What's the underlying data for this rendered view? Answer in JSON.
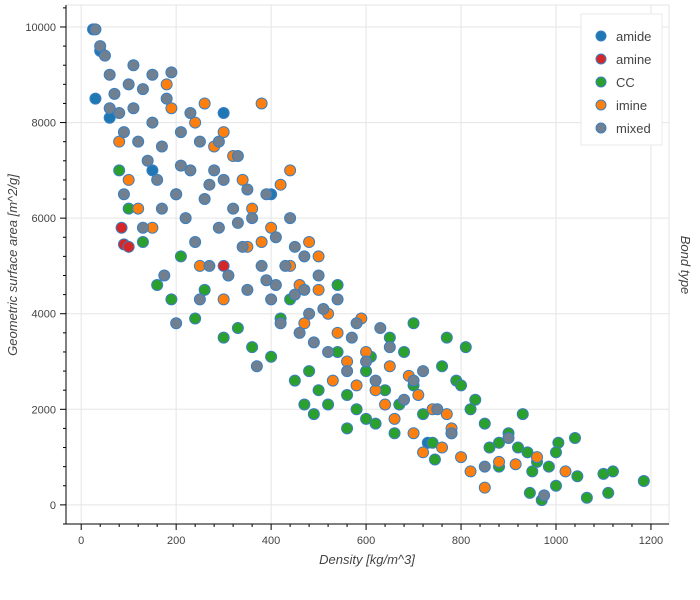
{
  "chart_data": {
    "type": "scatter",
    "title": "",
    "xlabel": "Density [kg/m^3]",
    "ylabel": "Geometric surface area [m^2/g]",
    "legend_title": "Bond type",
    "legend_position": "top-right",
    "grid": true,
    "xlim": [
      -32,
      1238
    ],
    "ylim": [
      -400,
      10460
    ],
    "xticks": [
      0,
      200,
      400,
      600,
      800,
      1000,
      1200
    ],
    "yticks": [
      0,
      2000,
      4000,
      6000,
      8000,
      10000
    ],
    "outline_color": "#3a7fc0",
    "series": [
      {
        "name": "amide",
        "color": "#1f77b4",
        "points": [
          [
            25,
            9950
          ],
          [
            40,
            9500
          ],
          [
            30,
            8500
          ],
          [
            60,
            8100
          ],
          [
            730,
            1300
          ],
          [
            150,
            7000
          ],
          [
            400,
            6500
          ],
          [
            300,
            8200
          ]
        ]
      },
      {
        "name": "amine",
        "color": "#d62728",
        "points": [
          [
            90,
            5450
          ],
          [
            85,
            5800
          ],
          [
            300,
            5000
          ],
          [
            100,
            5400
          ]
        ]
      },
      {
        "name": "CC",
        "color": "#2ca02c",
        "points": [
          [
            80,
            7000
          ],
          [
            100,
            6200
          ],
          [
            130,
            5500
          ],
          [
            160,
            4600
          ],
          [
            190,
            4300
          ],
          [
            210,
            5200
          ],
          [
            240,
            3900
          ],
          [
            260,
            4500
          ],
          [
            300,
            3500
          ],
          [
            330,
            3700
          ],
          [
            360,
            3300
          ],
          [
            400,
            3100
          ],
          [
            420,
            3900
          ],
          [
            450,
            2600
          ],
          [
            480,
            2800
          ],
          [
            500,
            2400
          ],
          [
            520,
            2100
          ],
          [
            540,
            3200
          ],
          [
            560,
            2300
          ],
          [
            580,
            2000
          ],
          [
            600,
            2800
          ],
          [
            620,
            1700
          ],
          [
            640,
            2400
          ],
          [
            660,
            1500
          ],
          [
            680,
            3200
          ],
          [
            700,
            2500
          ],
          [
            720,
            1900
          ],
          [
            740,
            1300
          ],
          [
            760,
            2900
          ],
          [
            780,
            1500
          ],
          [
            790,
            2600
          ],
          [
            810,
            3300
          ],
          [
            830,
            2200
          ],
          [
            850,
            1700
          ],
          [
            860,
            1200
          ],
          [
            880,
            800
          ],
          [
            900,
            1500
          ],
          [
            920,
            1200
          ],
          [
            940,
            1100
          ],
          [
            950,
            700
          ],
          [
            960,
            900
          ],
          [
            970,
            100
          ],
          [
            1000,
            400
          ],
          [
            1005,
            1300
          ],
          [
            1040,
            1400
          ],
          [
            1065,
            150
          ],
          [
            1100,
            650
          ],
          [
            1120,
            700
          ],
          [
            1185,
            500
          ],
          [
            1110,
            250
          ],
          [
            1000,
            1100
          ],
          [
            930,
            1900
          ],
          [
            800,
            2500
          ],
          [
            470,
            2100
          ],
          [
            560,
            1600
          ],
          [
            600,
            1800
          ],
          [
            650,
            3500
          ],
          [
            700,
            3800
          ],
          [
            440,
            4300
          ],
          [
            540,
            4600
          ],
          [
            490,
            1900
          ],
          [
            745,
            950
          ],
          [
            770,
            3500
          ],
          [
            610,
            3100
          ],
          [
            670,
            2100
          ],
          [
            820,
            2000
          ],
          [
            880,
            1300
          ],
          [
            985,
            800
          ],
          [
            1045,
            600
          ],
          [
            945,
            250
          ]
        ]
      },
      {
        "name": "imine",
        "color": "#ff7f0e",
        "points": [
          [
            80,
            7600
          ],
          [
            100,
            6800
          ],
          [
            120,
            6200
          ],
          [
            150,
            5800
          ],
          [
            190,
            8300
          ],
          [
            240,
            8000
          ],
          [
            260,
            8400
          ],
          [
            280,
            7500
          ],
          [
            300,
            7800
          ],
          [
            320,
            7300
          ],
          [
            340,
            6800
          ],
          [
            360,
            6200
          ],
          [
            380,
            5500
          ],
          [
            400,
            5800
          ],
          [
            420,
            6700
          ],
          [
            440,
            5000
          ],
          [
            460,
            4600
          ],
          [
            480,
            5500
          ],
          [
            500,
            5200
          ],
          [
            520,
            4000
          ],
          [
            540,
            3600
          ],
          [
            560,
            3000
          ],
          [
            580,
            2500
          ],
          [
            600,
            3200
          ],
          [
            620,
            2400
          ],
          [
            640,
            2100
          ],
          [
            660,
            1800
          ],
          [
            700,
            1500
          ],
          [
            720,
            1100
          ],
          [
            740,
            2000
          ],
          [
            760,
            1200
          ],
          [
            800,
            1000
          ],
          [
            820,
            700
          ],
          [
            850,
            360
          ],
          [
            880,
            900
          ],
          [
            915,
            850
          ],
          [
            960,
            1000
          ],
          [
            1020,
            700
          ],
          [
            300,
            4300
          ],
          [
            250,
            5000
          ],
          [
            200,
            6500
          ],
          [
            470,
            3800
          ],
          [
            530,
            2600
          ],
          [
            690,
            2700
          ],
          [
            780,
            1600
          ],
          [
            380,
            8400
          ],
          [
            180,
            8800
          ],
          [
            440,
            7000
          ],
          [
            500,
            4500
          ],
          [
            590,
            3900
          ],
          [
            650,
            2900
          ],
          [
            710,
            2300
          ],
          [
            770,
            1900
          ],
          [
            350,
            5400
          ]
        ]
      },
      {
        "name": "mixed",
        "color": "#708090",
        "points": [
          [
            30,
            9950
          ],
          [
            40,
            9600
          ],
          [
            50,
            9400
          ],
          [
            60,
            9000
          ],
          [
            70,
            8600
          ],
          [
            80,
            8200
          ],
          [
            90,
            7800
          ],
          [
            100,
            8800
          ],
          [
            110,
            8300
          ],
          [
            120,
            7600
          ],
          [
            130,
            8700
          ],
          [
            140,
            7200
          ],
          [
            150,
            8000
          ],
          [
            160,
            6800
          ],
          [
            170,
            7500
          ],
          [
            180,
            8500
          ],
          [
            190,
            9050
          ],
          [
            200,
            6500
          ],
          [
            210,
            7800
          ],
          [
            220,
            6000
          ],
          [
            230,
            7000
          ],
          [
            240,
            5500
          ],
          [
            250,
            7600
          ],
          [
            260,
            6400
          ],
          [
            270,
            5000
          ],
          [
            280,
            7000
          ],
          [
            290,
            5800
          ],
          [
            300,
            6800
          ],
          [
            310,
            4800
          ],
          [
            320,
            6200
          ],
          [
            330,
            7300
          ],
          [
            340,
            5400
          ],
          [
            350,
            4500
          ],
          [
            360,
            6000
          ],
          [
            370,
            2900
          ],
          [
            380,
            5000
          ],
          [
            390,
            6500
          ],
          [
            400,
            4300
          ],
          [
            410,
            5600
          ],
          [
            420,
            3800
          ],
          [
            430,
            5000
          ],
          [
            440,
            6000
          ],
          [
            450,
            4400
          ],
          [
            460,
            3600
          ],
          [
            470,
            5200
          ],
          [
            480,
            4000
          ],
          [
            490,
            3400
          ],
          [
            500,
            4800
          ],
          [
            520,
            3200
          ],
          [
            540,
            4300
          ],
          [
            560,
            2800
          ],
          [
            580,
            3800
          ],
          [
            600,
            3000
          ],
          [
            620,
            2600
          ],
          [
            650,
            3300
          ],
          [
            680,
            2200
          ],
          [
            720,
            2800
          ],
          [
            750,
            2000
          ],
          [
            780,
            1500
          ],
          [
            850,
            800
          ],
          [
            900,
            1400
          ],
          [
            975,
            200
          ],
          [
            200,
            3800
          ],
          [
            175,
            4800
          ],
          [
            250,
            4300
          ],
          [
            130,
            5800
          ],
          [
            90,
            6500
          ],
          [
            60,
            8300
          ],
          [
            110,
            9200
          ],
          [
            170,
            6200
          ],
          [
            230,
            8200
          ],
          [
            270,
            6700
          ],
          [
            330,
            5900
          ],
          [
            390,
            4700
          ],
          [
            450,
            5400
          ],
          [
            510,
            4100
          ],
          [
            570,
            3500
          ],
          [
            630,
            3700
          ],
          [
            700,
            2600
          ],
          [
            150,
            9000
          ],
          [
            210,
            7100
          ],
          [
            290,
            7600
          ],
          [
            350,
            6600
          ],
          [
            410,
            4600
          ],
          [
            470,
            4500
          ]
        ]
      }
    ]
  }
}
